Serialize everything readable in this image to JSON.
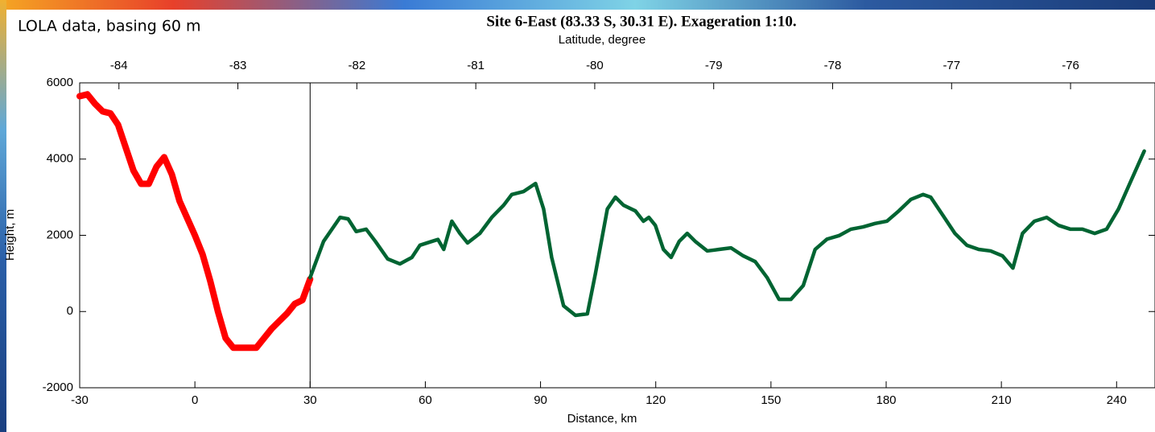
{
  "chart_data": {
    "type": "line",
    "title": "Site 6-East (83.33 S,  30.31 E). Exageration 1:10.",
    "annotation": "LOLA data, basing 60 m",
    "x_label": "Distance, km",
    "x2_label": "Latitude, degree",
    "y_label": "Height, m",
    "xlim": [
      -30,
      250
    ],
    "xticks": [
      -30,
      0,
      30,
      60,
      90,
      120,
      150,
      180,
      210,
      240
    ],
    "x2lim": [
      -84.33,
      -75.29
    ],
    "x2ticks": [
      -84,
      -83,
      -82,
      -81,
      -80,
      -79,
      -78,
      -77,
      -76
    ],
    "ylim": [
      -2000,
      6000
    ],
    "yticks": [
      -2000,
      0,
      2000,
      4000,
      6000
    ],
    "vline": 30,
    "series": [
      {
        "color": "#ff0000",
        "x": [
          -30,
          -28,
          -26,
          -24,
          -22,
          -20,
          -18,
          -16,
          -14,
          -12,
          -10,
          -8,
          -6,
          -4,
          -2,
          0,
          2,
          4,
          6,
          8,
          10,
          12,
          14,
          16,
          18,
          20,
          22,
          24,
          26,
          28,
          30
        ],
        "values": [
          5650,
          5700,
          5450,
          5250,
          5200,
          4900,
          4300,
          3700,
          3350,
          3350,
          3800,
          4050,
          3600,
          2900,
          2450,
          2000,
          1500,
          800,
          0,
          -700,
          -950,
          -950,
          -950,
          -950,
          -700,
          -450,
          -250,
          -50,
          200,
          300,
          850
        ]
      },
      {
        "color": "#006432",
        "x": [
          30,
          33.5,
          37.8,
          39.9,
          42,
          44.6,
          47,
          50.2,
          53.4,
          56.5,
          58.6,
          61.7,
          63.3,
          64.8,
          66.9,
          69,
          71,
          74.2,
          77.3,
          80.4,
          82.5,
          85.6,
          88.7,
          90.8,
          92.9,
          96,
          99.1,
          102.2,
          104.3,
          107.4,
          109.5,
          111.6,
          114.7,
          116.8,
          118.2,
          119.9,
          122,
          124,
          126.1,
          128.2,
          130.3,
          133.4,
          136.5,
          139.6,
          142.8,
          145.9,
          149,
          152.1,
          155.2,
          158.4,
          161.5,
          164.6,
          167.7,
          170.8,
          174,
          177.1,
          180.2,
          183.3,
          186.4,
          189.6,
          191.6,
          194.8,
          197.9,
          201,
          204.1,
          207.2,
          210.3,
          213,
          215.5,
          218.6,
          221.8,
          224.9,
          228,
          231.1,
          234.3,
          237.4,
          240.5,
          243.7,
          247.2
        ],
        "values": [
          890,
          1840,
          2470,
          2430,
          2100,
          2160,
          1840,
          1380,
          1250,
          1420,
          1740,
          1840,
          1890,
          1630,
          2370,
          2050,
          1800,
          2050,
          2470,
          2790,
          3070,
          3150,
          3360,
          2690,
          1420,
          150,
          -100,
          -60,
          1000,
          2690,
          3000,
          2790,
          2640,
          2370,
          2470,
          2260,
          1630,
          1420,
          1840,
          2050,
          1840,
          1590,
          1630,
          1670,
          1460,
          1310,
          890,
          320,
          320,
          680,
          1630,
          1900,
          1990,
          2160,
          2220,
          2310,
          2370,
          2640,
          2940,
          3070,
          3000,
          2520,
          2050,
          1740,
          1630,
          1590,
          1460,
          1140,
          2050,
          2370,
          2470,
          2260,
          2160,
          2160,
          2050,
          2160,
          2690,
          3420,
          4210
        ]
      }
    ]
  }
}
